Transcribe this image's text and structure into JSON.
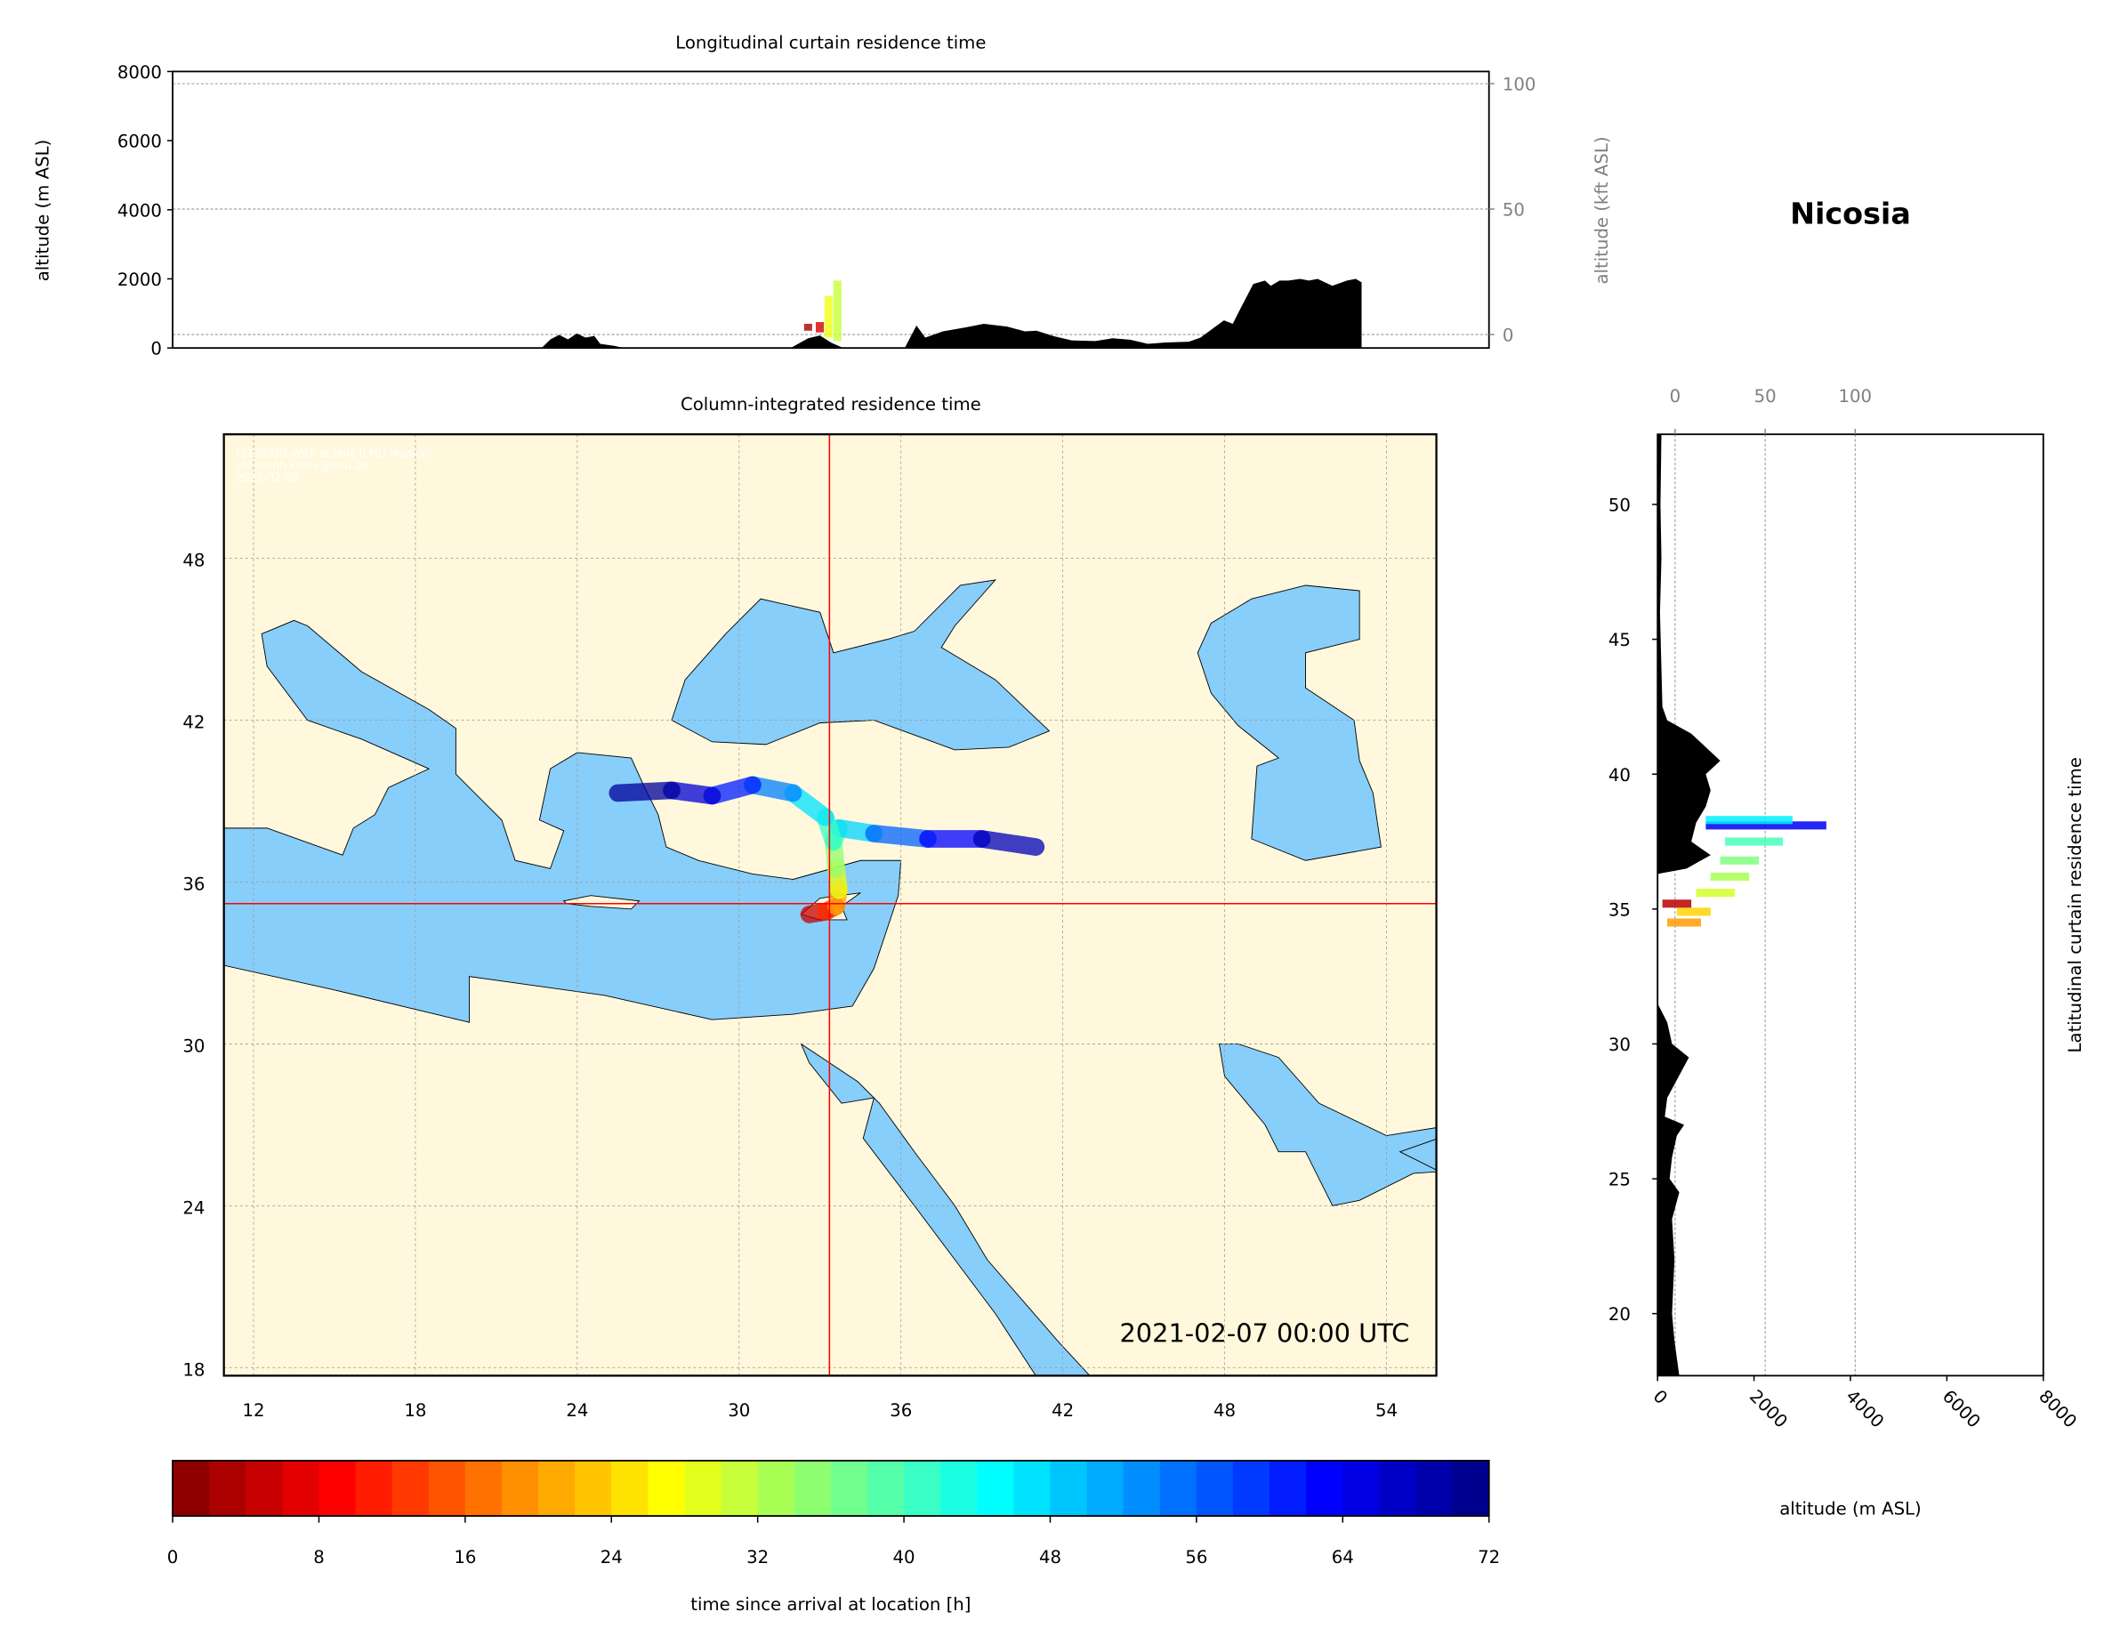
{
  "station": "Nicosia",
  "timestamp": "2021-02-07 00:00 UTC",
  "attribution": [
    "FLEXPART-WRF at MIM (LMU Munich)",
    "christoph.knote@lmu.de",
    "2021-02-09"
  ],
  "colors": {
    "sea": "#87cefa",
    "land": "#fff8dc",
    "terrain": "#000000",
    "crosshair": "#ff0000",
    "colormap": "jet_r"
  },
  "chart_data": [
    {
      "type": "area",
      "title": "Longitudinal curtain residence time",
      "ylabel": "altitude (m ASL)",
      "ylabel_right": "altitude (kft ASL)",
      "yticks": [
        0,
        2000,
        4000,
        6000,
        8000
      ],
      "yticks_right": [
        0,
        50,
        100
      ],
      "ylim": [
        0,
        8000
      ],
      "xlim": [
        10.9,
        55.85
      ],
      "grid": true,
      "terrain": [
        [
          10.9,
          0
        ],
        [
          23.5,
          0
        ],
        [
          23.8,
          250
        ],
        [
          24.1,
          380
        ],
        [
          24.4,
          250
        ],
        [
          24.7,
          420
        ],
        [
          25,
          300
        ],
        [
          25.3,
          350
        ],
        [
          25.5,
          120
        ],
        [
          26,
          60
        ],
        [
          26.3,
          0
        ],
        [
          32,
          0
        ],
        [
          32.6,
          280
        ],
        [
          33,
          360
        ],
        [
          33.4,
          150
        ],
        [
          33.8,
          0
        ],
        [
          35.9,
          0
        ],
        [
          36.3,
          650
        ],
        [
          36.6,
          300
        ],
        [
          37.2,
          480
        ],
        [
          38,
          600
        ],
        [
          38.6,
          700
        ],
        [
          39.4,
          620
        ],
        [
          40,
          480
        ],
        [
          40.4,
          500
        ],
        [
          41,
          340
        ],
        [
          41.6,
          220
        ],
        [
          42.4,
          200
        ],
        [
          43,
          280
        ],
        [
          43.6,
          240
        ],
        [
          44.2,
          120
        ],
        [
          44.8,
          160
        ],
        [
          45.6,
          180
        ],
        [
          46,
          300
        ],
        [
          46.4,
          550
        ],
        [
          46.8,
          800
        ],
        [
          47.1,
          700
        ],
        [
          47.4,
          1200
        ],
        [
          47.8,
          1850
        ],
        [
          48.2,
          1950
        ],
        [
          48.4,
          1800
        ],
        [
          48.7,
          1950
        ],
        [
          49,
          1950
        ],
        [
          49.4,
          2000
        ],
        [
          49.7,
          1950
        ],
        [
          50,
          2000
        ],
        [
          50.5,
          1800
        ],
        [
          51,
          1950
        ],
        [
          51.3,
          2000
        ],
        [
          51.5,
          1900
        ],
        [
          51.5,
          0
        ]
      ],
      "plume": [
        {
          "lon": 32.6,
          "bottom": 500,
          "top": 700,
          "hours": 3
        },
        {
          "lon": 33.0,
          "bottom": 450,
          "top": 750,
          "hours": 6
        },
        {
          "lon": 33.3,
          "bottom": 300,
          "top": 1500,
          "hours": 28
        },
        {
          "lon": 33.6,
          "bottom": 200,
          "top": 1950,
          "hours": 31
        }
      ]
    },
    {
      "type": "heatmap",
      "title": "Column-integrated residence time",
      "xticks": [
        12,
        18,
        24,
        30,
        36,
        42,
        48,
        54
      ],
      "yticks": [
        18,
        24,
        30,
        36,
        42,
        48
      ],
      "xlim": [
        10.9,
        55.85
      ],
      "ylim": [
        17.7,
        52.65
      ],
      "grid": true,
      "release_point": {
        "lon": 33.35,
        "lat": 35.2
      },
      "plume_tracks": [
        {
          "points": [
            [
              32.6,
              34.8
            ],
            [
              33.2,
              34.9
            ],
            [
              33.6,
              35.1
            ]
          ],
          "hours": [
            2,
            8,
            16
          ]
        },
        {
          "points": [
            [
              33.6,
              35.1
            ],
            [
              33.7,
              35.7
            ],
            [
              33.6,
              36.5
            ],
            [
              33.5,
              37.5
            ],
            [
              33.7,
              38.0
            ],
            [
              35,
              37.8
            ],
            [
              37,
              37.6
            ],
            [
              39,
              37.6
            ],
            [
              41,
              37.3
            ]
          ],
          "hours": [
            18,
            24,
            32,
            38,
            44,
            52,
            60,
            66,
            70
          ]
        },
        {
          "points": [
            [
              33.5,
              37.5
            ],
            [
              33.2,
              38.4
            ],
            [
              32,
              39.3
            ],
            [
              30.5,
              39.6
            ],
            [
              29,
              39.2
            ],
            [
              27.5,
              39.4
            ],
            [
              25.5,
              39.3
            ]
          ],
          "hours": [
            38,
            44,
            50,
            58,
            64,
            68,
            72
          ]
        }
      ]
    },
    {
      "type": "area",
      "title": "Latitudinal curtain residence time",
      "xlabel": "altitude (m ASL)",
      "xticks": [
        0,
        2000,
        4000,
        6000,
        8000
      ],
      "xticks_top": [
        0,
        50,
        100
      ],
      "xlim": [
        0,
        8000
      ],
      "yticks": [
        20,
        25,
        30,
        35,
        40,
        45,
        50
      ],
      "ylim": [
        17.7,
        52.65
      ],
      "grid": true,
      "terrain": [
        [
          17.7,
          450
        ],
        [
          19,
          350
        ],
        [
          20,
          300
        ],
        [
          22,
          350
        ],
        [
          23.5,
          300
        ],
        [
          24.5,
          450
        ],
        [
          25,
          250
        ],
        [
          25.8,
          300
        ],
        [
          26.6,
          400
        ],
        [
          27,
          550
        ],
        [
          27.3,
          150
        ],
        [
          28,
          200
        ],
        [
          29,
          500
        ],
        [
          29.5,
          650
        ],
        [
          30,
          300
        ],
        [
          30.8,
          200
        ],
        [
          31.5,
          0
        ],
        [
          36.3,
          0
        ],
        [
          36.5,
          600
        ],
        [
          37,
          1100
        ],
        [
          37.5,
          700
        ],
        [
          38.2,
          800
        ],
        [
          38.8,
          1000
        ],
        [
          39.4,
          1100
        ],
        [
          40,
          1000
        ],
        [
          40.5,
          1300
        ],
        [
          41,
          1000
        ],
        [
          41.5,
          700
        ],
        [
          42,
          200
        ],
        [
          42.5,
          100
        ],
        [
          46,
          50
        ],
        [
          48,
          80
        ],
        [
          50,
          60
        ],
        [
          52.65,
          80
        ]
      ],
      "plume": [
        {
          "lat": 38.1,
          "left": 1000,
          "right": 3500,
          "hours": 64
        },
        {
          "lat": 38.3,
          "left": 1000,
          "right": 2800,
          "hours": 46
        },
        {
          "lat": 37.5,
          "left": 1400,
          "right": 2600,
          "hours": 40
        },
        {
          "lat": 36.8,
          "left": 1300,
          "right": 2100,
          "hours": 36
        },
        {
          "lat": 36.2,
          "left": 1100,
          "right": 1900,
          "hours": 33
        },
        {
          "lat": 35.6,
          "left": 800,
          "right": 1600,
          "hours": 30
        },
        {
          "lat": 34.9,
          "left": 400,
          "right": 1100,
          "hours": 24
        },
        {
          "lat": 34.5,
          "left": 200,
          "right": 900,
          "hours": 20
        },
        {
          "lat": 35.2,
          "left": 100,
          "right": 700,
          "hours": 4
        }
      ]
    },
    {
      "type": "colorbar",
      "xlabel": "time since arrival at location [h]",
      "xticks": [
        0,
        8,
        16,
        24,
        32,
        40,
        48,
        56,
        64,
        72
      ],
      "xlim": [
        0,
        72
      ]
    }
  ]
}
